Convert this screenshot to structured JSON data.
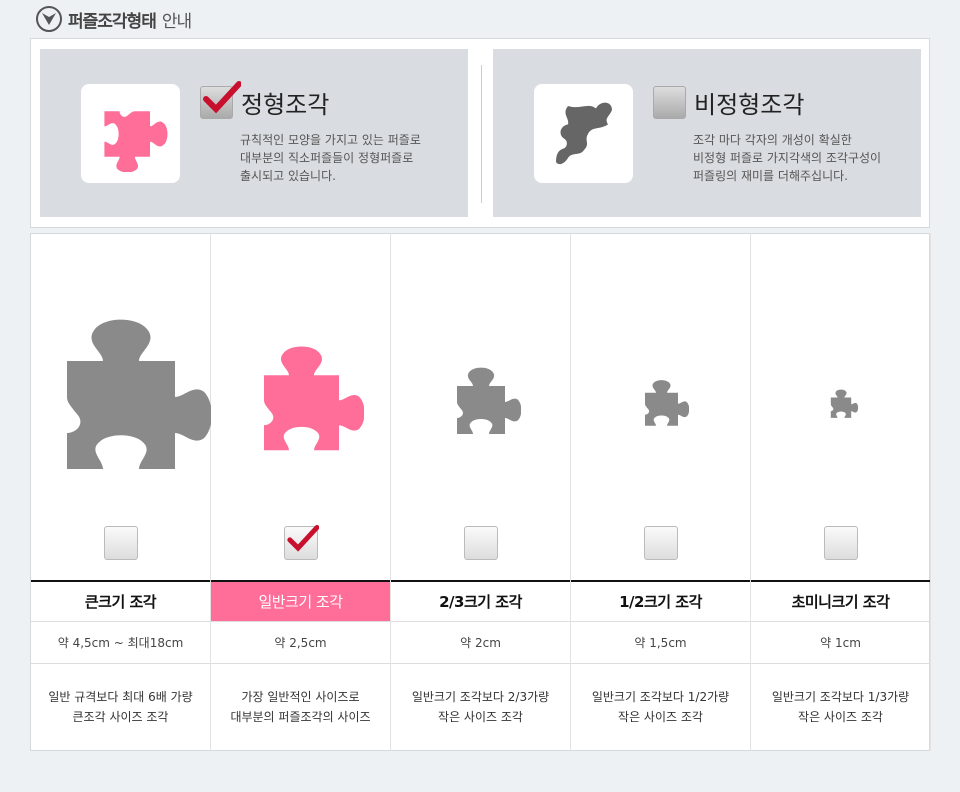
{
  "header": {
    "title_bold": "퍼즐조각형태",
    "title_rest": "안내",
    "icon": "chevron-down-circle-icon"
  },
  "types": [
    {
      "title": "정형조각",
      "checked": true,
      "color": "#ff6e99",
      "lines": [
        "규칙적인 모양을 가지고 있는 퍼즐로",
        "대부분의 직소퍼즐들이 정형퍼즐로",
        "출시되고 있습니다."
      ]
    },
    {
      "title": "비정형조각",
      "checked": false,
      "color": "#666666",
      "lines": [
        "조각 마다 각자의 개성이 확실한",
        "비정형 퍼즐로 가지각색의 조각구성이",
        "퍼즐링의 재미를 더해주십니다."
      ]
    }
  ],
  "sizes": [
    {
      "name": "큰크기 조각",
      "size": "약 4,5cm ~ 최대18cm",
      "desc": [
        "일반 규격보다 최대 6배 가량",
        "큰조각 사이즈 조각"
      ],
      "checked": false,
      "color": "#8a8a8a"
    },
    {
      "name": "일반크기 조각",
      "size": "약 2,5cm",
      "desc": [
        "가장 일반적인 사이즈로",
        "대부분의 퍼즐조각의 사이즈"
      ],
      "checked": true,
      "color": "#ff6e99"
    },
    {
      "name": "2/3크기 조각",
      "size": "약 2cm",
      "desc": [
        "일반크기 조각보다 2/3가량",
        "작은 사이즈 조각"
      ],
      "checked": false,
      "color": "#8a8a8a"
    },
    {
      "name": "1/2크기 조각",
      "size": "약 1,5cm",
      "desc": [
        "일반크기 조각보다 1/2가량",
        "작은 사이즈 조각"
      ],
      "checked": false,
      "color": "#8a8a8a"
    },
    {
      "name": "초미니크기 조각",
      "size": "약 1cm",
      "desc": [
        "일반크기 조각보다 1/3가량",
        "작은 사이즈 조각"
      ],
      "checked": false,
      "color": "#8a8a8a"
    }
  ]
}
